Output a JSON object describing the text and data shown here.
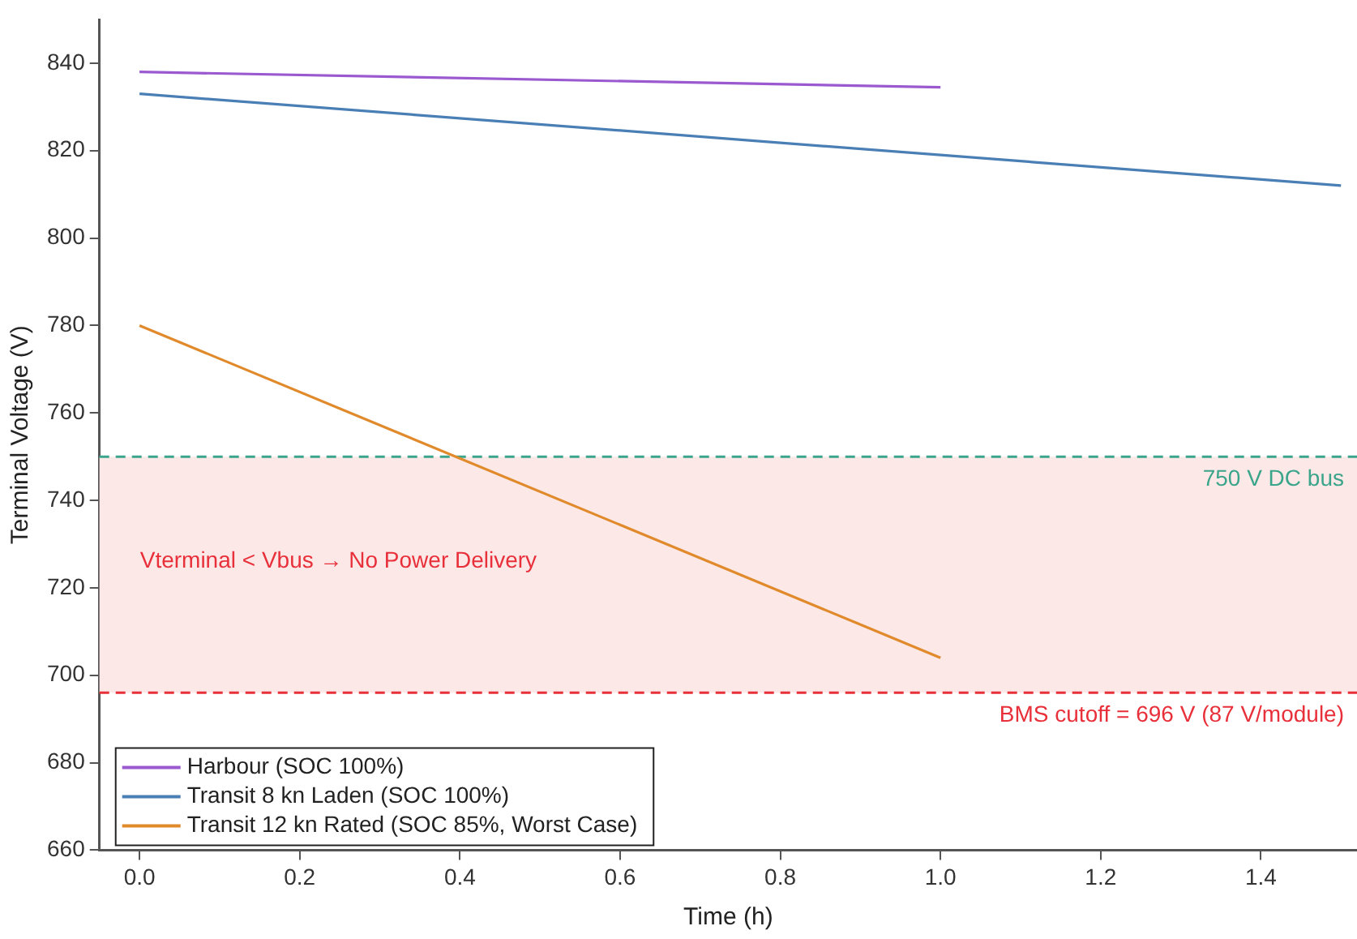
{
  "chart_data": {
    "type": "line",
    "xlabel": "Time (h)",
    "ylabel": "Terminal Voltage (V)",
    "xlim": [
      -0.05,
      1.52
    ],
    "xticks": [
      {
        "value": 0,
        "label": "0.0"
      },
      {
        "value": 0.2,
        "label": "0.2"
      },
      {
        "value": 0.4,
        "label": "0.4"
      },
      {
        "value": 0.6,
        "label": "0.6"
      },
      {
        "value": 0.8,
        "label": "0.8"
      },
      {
        "value": 1,
        "label": "1.0"
      },
      {
        "value": 1.2,
        "label": "1.2"
      },
      {
        "value": 1.4,
        "label": "1.4"
      }
    ],
    "ylim": [
      660,
      850
    ],
    "yticks": [
      660,
      680,
      700,
      720,
      740,
      760,
      780,
      800,
      820,
      840
    ],
    "series": [
      {
        "name": "Harbour (SOC 100%)",
        "color": "#9b59d0",
        "x": [
          0,
          1
        ],
        "values": [
          838,
          834.5
        ]
      },
      {
        "name": "Transit 8 kn Laden (SOC 100%)",
        "color": "#4a7fb5",
        "x": [
          0,
          1.5
        ],
        "values": [
          833,
          812
        ]
      },
      {
        "name": "Transit 12 kn Rated (SOC 85%, Worst Case)",
        "color": "#e08a2c",
        "x": [
          0,
          1
        ],
        "values": [
          780,
          704
        ]
      }
    ],
    "ref_lines": [
      {
        "axis": "y",
        "value": 750,
        "label": "750 V DC bus",
        "color": "#3aa58a",
        "line_style": "dashed"
      },
      {
        "axis": "y",
        "value": 696,
        "label": "BMS cutoff = 696 V (87 V/module)",
        "color": "#e8303a",
        "line_style": "dashed"
      }
    ],
    "bands": [
      {
        "axis": "y",
        "from": 696,
        "to": 750,
        "label": "Vterminal < Vbus → No Power Delivery",
        "color": "#fde8e8"
      }
    ],
    "grid": false,
    "legend": "bottom left",
    "marker": "none",
    "line_style": "solid"
  }
}
